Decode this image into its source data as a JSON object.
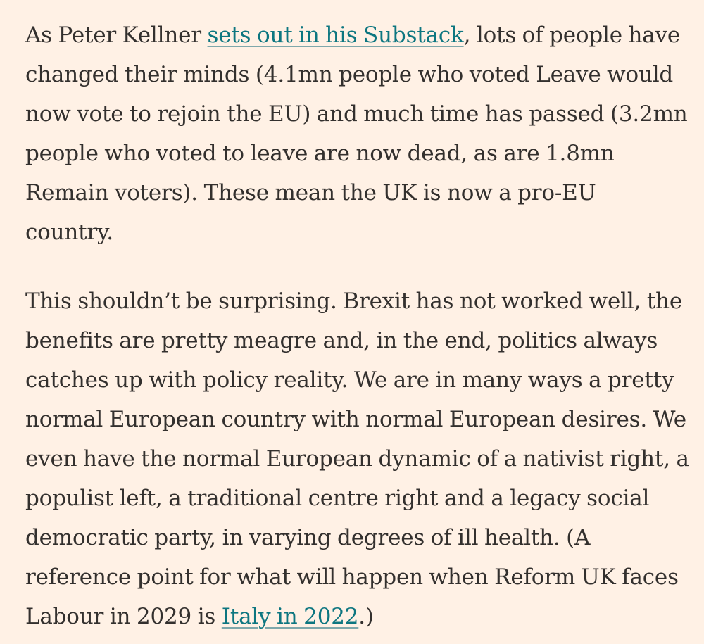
{
  "article": {
    "paragraph_1": {
      "before_link": "As Peter Kellner ",
      "link_text": "sets out in his Substack",
      "after_link": ", lots of people have changed their minds (4.1mn people who voted Leave would now vote to rejoin the EU) and much time has passed (3.2mn people who voted to leave are now dead, as are 1.8mn Remain voters). These mean the UK is now a pro-EU country."
    },
    "paragraph_2": {
      "before_link": "This shouldn’t be surprising. Brexit has not worked well, the benefits are pretty meagre and, in the end, politics always catches up with policy reality. We are in many ways a pretty normal European country with normal European desires. We even have the normal European dynamic of a nativist right, a populist left, a traditional centre right and a legacy social democratic party, in varying degrees of ill health. (A reference point for what will happen when Reform UK faces Labour in 2029 is ",
      "link_text": "Italy in 2022",
      "after_link": ".)"
    }
  },
  "colors": {
    "background": "#fff1e5",
    "text": "#33302e",
    "link": "#0d7680"
  }
}
